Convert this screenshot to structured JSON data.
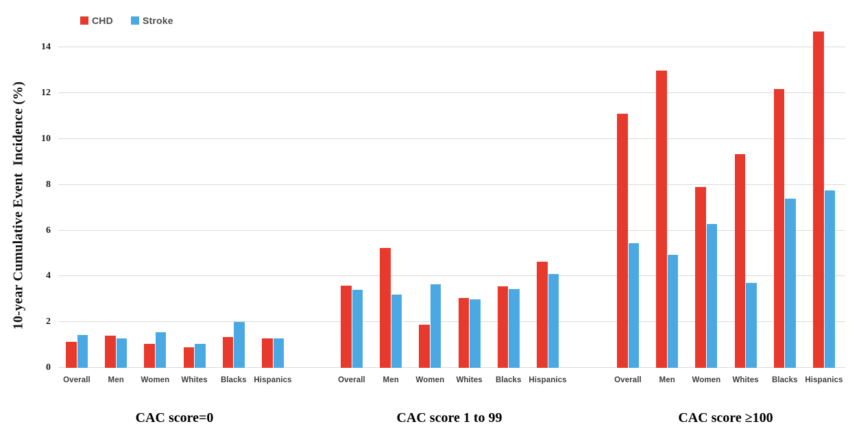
{
  "figure": {
    "background": "#ffffff"
  },
  "legend": {
    "items": [
      {
        "label": "CHD",
        "color": "#E7392C",
        "icon": "red-square-swatch"
      },
      {
        "label": "Stroke",
        "color": "#4AA9E3",
        "icon": "blue-square-swatch"
      }
    ]
  },
  "chart_data": {
    "type": "bar",
    "title": "",
    "xlabel": "",
    "ylabel": "10-year Cumulative Event  Incidence (%)",
    "ylim": [
      0,
      14
    ],
    "yticks": [
      0,
      2,
      4,
      6,
      8,
      10,
      12,
      14
    ],
    "grid": true,
    "legend_position": "top-left",
    "legend_entries": [
      "CHD",
      "Stroke"
    ],
    "series_names": [
      "CHD",
      "Stroke"
    ],
    "categories": [
      "Overall",
      "Men",
      "Women",
      "Whites",
      "Blacks",
      "Hispanics"
    ],
    "colors": {
      "chd": "#E7392C",
      "stroke": "#4AA9E3",
      "gridline": "#D9D9D9",
      "tick_text": "#1B1B1B",
      "category_text": "#3D3D3D",
      "legend_text": "#4A4A4A"
    },
    "groups": [
      {
        "label": "CAC score=0",
        "chd": [
          1.15,
          1.4,
          1.05,
          0.9,
          1.35,
          1.3
        ],
        "stroke": [
          1.45,
          1.3,
          1.55,
          1.05,
          2.0,
          1.3
        ]
      },
      {
        "label": "CAC score 1 to 99",
        "chd": [
          3.6,
          5.25,
          1.9,
          3.05,
          3.55,
          4.65
        ],
        "stroke": [
          3.4,
          3.2,
          3.65,
          3.0,
          3.45,
          4.1
        ]
      },
      {
        "label": "CAC score ≥100",
        "chd": [
          11.1,
          13.0,
          7.9,
          9.35,
          12.2,
          14.7
        ],
        "stroke": [
          5.45,
          4.95,
          6.3,
          3.7,
          7.4,
          7.75
        ]
      }
    ]
  }
}
